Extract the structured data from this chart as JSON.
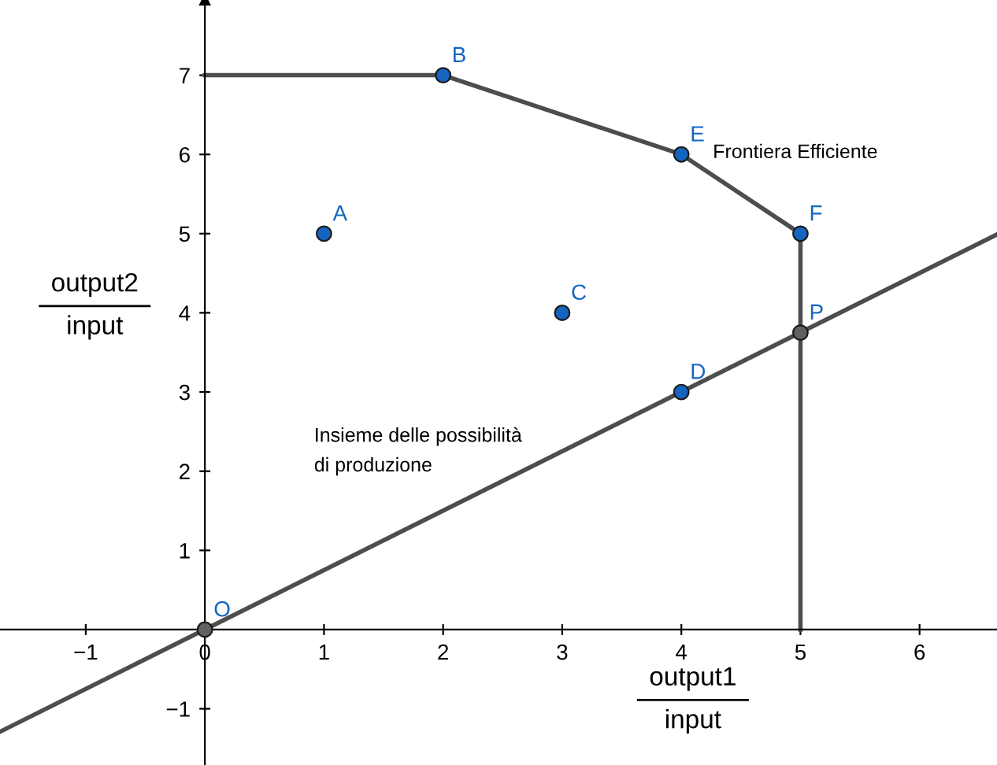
{
  "chart_data": {
    "type": "scatter",
    "xlabel": "output1\ninput",
    "ylabel": "output2\ninput",
    "xlim": [
      -1.72,
      6.65
    ],
    "ylim": [
      -1.71,
      7.95
    ],
    "xticks": [
      -1,
      0,
      1,
      2,
      3,
      4,
      5,
      6
    ],
    "yticks": [
      -1,
      1,
      2,
      3,
      4,
      5,
      6,
      7
    ],
    "grid": false,
    "legend": false,
    "series": [
      {
        "type": "line",
        "color": "#4d4d4d",
        "x": [
          0,
          2,
          4,
          5,
          5
        ],
        "values": [
          7,
          7,
          6,
          5,
          0
        ],
        "marker": "none"
      },
      {
        "type": "line",
        "color": "#4d4d4d",
        "x": [
          -1.72,
          6.65
        ],
        "values": [
          -1.29,
          4.99
        ],
        "marker": "none"
      },
      {
        "color": "#1565c0",
        "x": [
          1,
          2,
          3,
          4,
          4,
          5
        ],
        "values": [
          5,
          7,
          4,
          3,
          6,
          5
        ],
        "marker": "circle"
      },
      {
        "color": "#616161",
        "x": [
          0,
          5
        ],
        "values": [
          0,
          3.75
        ],
        "marker": "circle"
      }
    ],
    "annotations": [
      {
        "text": "A",
        "x": 1,
        "y": 5
      },
      {
        "text": "B",
        "x": 2,
        "y": 7
      },
      {
        "text": "C",
        "x": 3,
        "y": 4
      },
      {
        "text": "D",
        "x": 4,
        "y": 3
      },
      {
        "text": "E",
        "x": 4,
        "y": 6
      },
      {
        "text": "F",
        "x": 5,
        "y": 5
      },
      {
        "text": "O",
        "x": 0,
        "y": 0
      },
      {
        "text": "P",
        "x": 5,
        "y": 3.75
      },
      "Frontiera Efficiente",
      "Insieme delle possibilità\ndi produzione"
    ]
  }
}
